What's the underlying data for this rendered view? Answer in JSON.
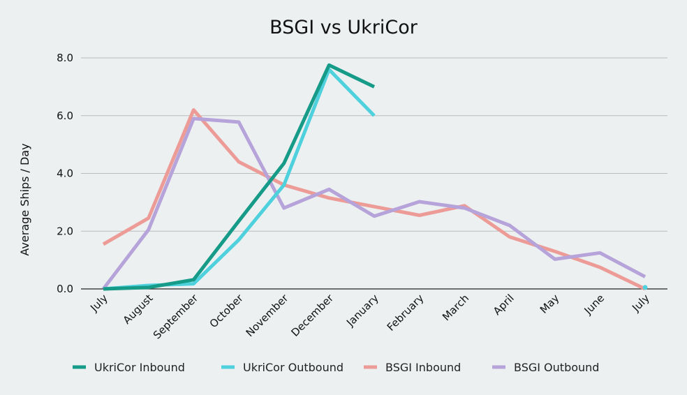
{
  "chart_data": {
    "type": "line",
    "title": "BSGI vs UkriCor",
    "xlabel": "",
    "ylabel": "Average Ships / Day",
    "ylim": [
      0,
      8
    ],
    "yticks": [
      "0.0",
      "2.0",
      "4.0",
      "6.0",
      "8.0"
    ],
    "grid": true,
    "legend_position": "bottom",
    "categories": [
      "July",
      "August",
      "September",
      "October",
      "November",
      "December",
      "January",
      "February",
      "March",
      "April",
      "May",
      "June",
      "July"
    ],
    "series": [
      {
        "name": "UkriCor Inbound",
        "color": "#159b87",
        "values": [
          0.0,
          0.05,
          0.32,
          2.35,
          4.35,
          7.75,
          7.0,
          null,
          null,
          null,
          null,
          null,
          null
        ]
      },
      {
        "name": "UkriCor Outbound",
        "color": "#4fd1dd",
        "values": [
          0.0,
          0.12,
          0.18,
          1.7,
          3.6,
          7.6,
          6.0,
          null,
          null,
          null,
          null,
          null,
          0.05
        ]
      },
      {
        "name": "BSGI Inbound",
        "color": "#ec9b97",
        "values": [
          1.55,
          2.45,
          6.2,
          4.4,
          3.6,
          3.15,
          2.85,
          2.55,
          2.88,
          1.8,
          1.3,
          0.75,
          0.0
        ]
      },
      {
        "name": "BSGI Outbound",
        "color": "#b5a3d9",
        "values": [
          0.0,
          2.05,
          5.9,
          5.78,
          2.8,
          3.45,
          2.52,
          3.02,
          2.8,
          2.2,
          1.03,
          1.25,
          0.42
        ]
      }
    ]
  }
}
